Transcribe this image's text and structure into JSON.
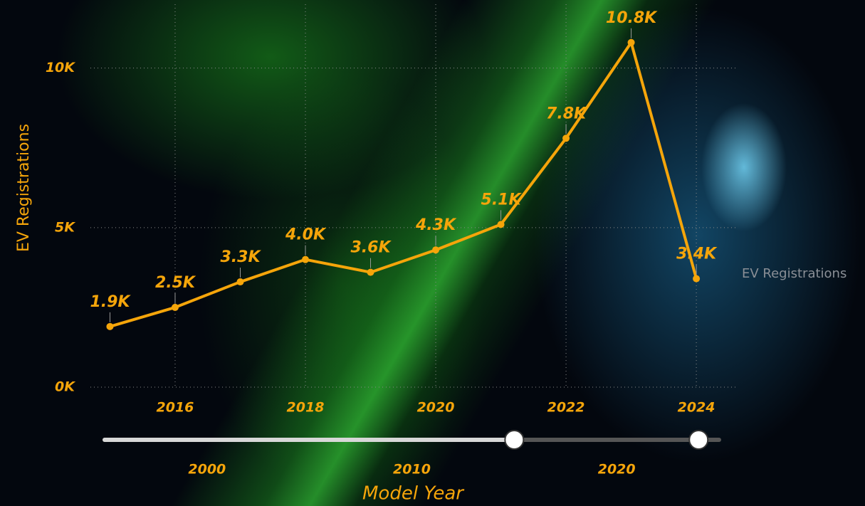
{
  "chart_data": {
    "type": "line",
    "x_label": "Model Year",
    "y_label": "EV Registrations",
    "x": [
      2015,
      2016,
      2017,
      2018,
      2019,
      2020,
      2021,
      2022,
      2023,
      2024
    ],
    "series": [
      {
        "name": "EV Registrations",
        "color": "#f5a50a",
        "values": [
          1900,
          2500,
          3300,
          4000,
          3600,
          4300,
          5100,
          7800,
          10800,
          3400
        ],
        "value_labels": [
          "1.9K",
          "2.5K",
          "3.3K",
          "4.0K",
          "3.6K",
          "4.3K",
          "5.1K",
          "7.8K",
          "10.8K",
          "3.4K"
        ]
      }
    ],
    "xlim": [
      2014.7,
      2024.6
    ],
    "xticks": [
      2016,
      2018,
      2020,
      2022,
      2024
    ],
    "ylim": [
      0,
      12000
    ],
    "yticks": [
      {
        "value": 0,
        "label": "0K"
      },
      {
        "value": 5000,
        "label": "5K"
      },
      {
        "value": 10000,
        "label": "10K"
      }
    ],
    "grid": true,
    "slider": {
      "range": [
        1995,
        2025
      ],
      "ticks": [
        2000,
        2010,
        2020
      ],
      "selected": [
        2015,
        2024
      ]
    }
  }
}
